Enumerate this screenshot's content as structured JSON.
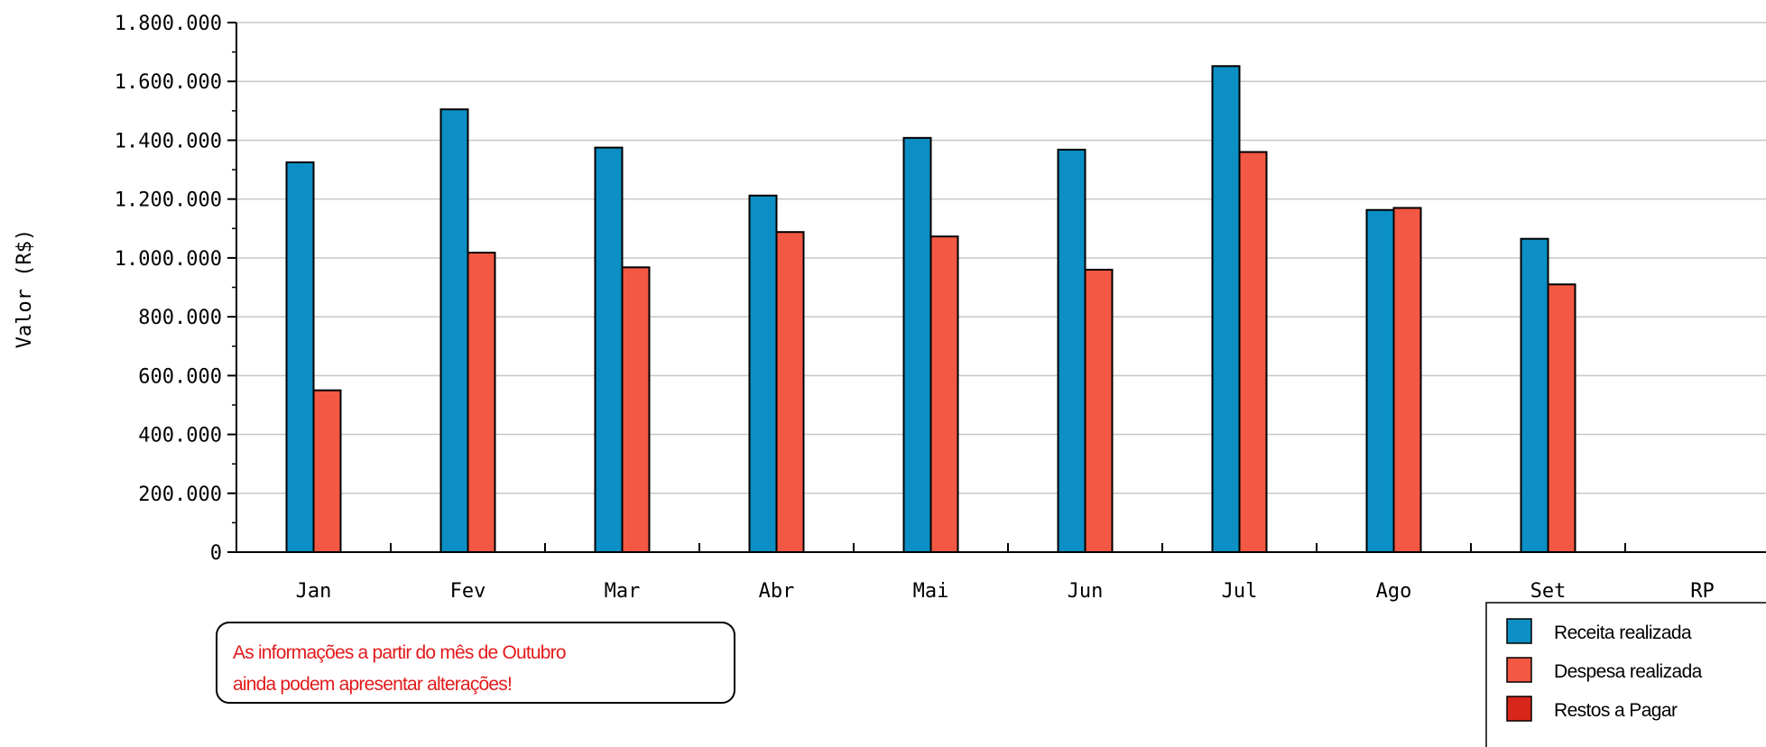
{
  "chart_data": {
    "type": "bar",
    "ylabel": "Valor (R$)",
    "ylim": [
      0,
      1800000
    ],
    "yticks": [
      0,
      200000,
      400000,
      600000,
      800000,
      1000000,
      1200000,
      1400000,
      1600000,
      1800000
    ],
    "ytick_labels": [
      "0",
      "200.000",
      "400.000",
      "600.000",
      "800.000",
      "1.000.000",
      "1.200.000",
      "1.400.000",
      "1.600.000",
      "1.800.000"
    ],
    "categories": [
      "Jan",
      "Fev",
      "Mar",
      "Abr",
      "Mai",
      "Jun",
      "Jul",
      "Ago",
      "Set",
      "RP"
    ],
    "grid": true,
    "legend_position": "bottom-right",
    "series": [
      {
        "name": "Receita realizada",
        "color": "#0b8fc4",
        "values": [
          1325000,
          1505000,
          1375000,
          1212000,
          1408000,
          1368000,
          1652000,
          1163000,
          1065000,
          null
        ]
      },
      {
        "name": "Despesa realizada",
        "color": "#f25843",
        "values": [
          550000,
          1018000,
          968000,
          1088000,
          1073000,
          960000,
          1360000,
          1170000,
          910000,
          null
        ]
      },
      {
        "name": "Restos a Pagar",
        "color": "#d8261a",
        "values": [
          null,
          null,
          null,
          null,
          null,
          null,
          null,
          null,
          null,
          0
        ]
      }
    ],
    "annotation": {
      "lines": [
        "As informações a partir do mês de Outubro",
        "ainda podem apresentar alterações!"
      ],
      "color": "#e31a1c"
    }
  }
}
